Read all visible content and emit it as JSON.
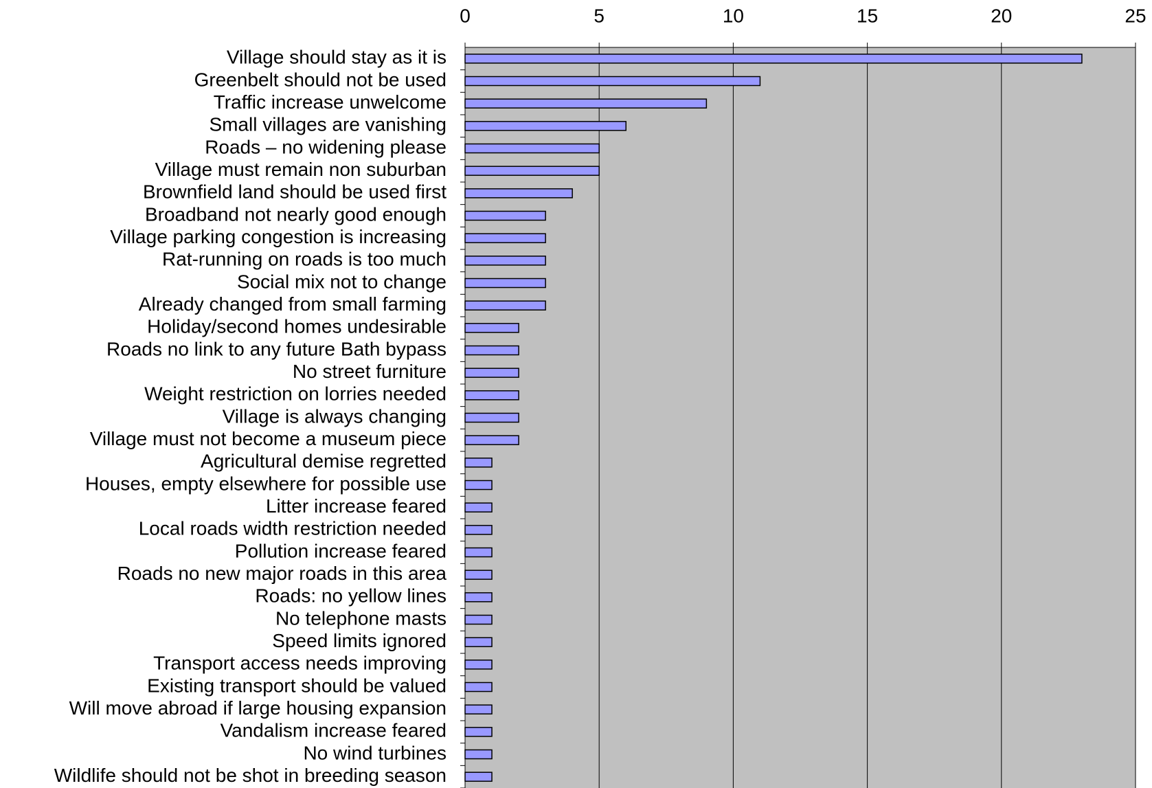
{
  "chart_data": {
    "type": "bar",
    "orientation": "horizontal",
    "categories": [
      "Village should stay as it is",
      "Greenbelt should not be used",
      "Traffic increase unwelcome",
      "Small villages are vanishing",
      "Roads – no widening please",
      "Village must remain non suburban",
      "Brownfield land should be used first",
      "Broadband not nearly good enough",
      "Village parking congestion is increasing",
      "Rat-running on roads is too much",
      "Social mix not to change",
      "Already changed from small farming",
      "Holiday/second homes undesirable",
      "Roads no link to any future Bath bypass",
      "No street furniture",
      "Weight restriction on lorries needed",
      "Village is always changing",
      "Village must not become a museum piece",
      "Agricultural demise regretted",
      "Houses, empty elsewhere for possible use",
      "Litter increase feared",
      "Local roads width restriction needed",
      "Pollution increase feared",
      "Roads no new major roads in this area",
      "Roads: no yellow lines",
      "No telephone masts",
      "Speed limits ignored",
      "Transport access needs improving",
      "Existing transport should be valued",
      "Will move abroad if large housing expansion",
      "Vandalism increase feared",
      "No wind turbines",
      "Wildlife should not be shot in breeding season"
    ],
    "values": [
      23,
      11,
      9,
      6,
      5,
      5,
      4,
      3,
      3,
      3,
      3,
      3,
      2,
      2,
      2,
      2,
      2,
      2,
      1,
      1,
      1,
      1,
      1,
      1,
      1,
      1,
      1,
      1,
      1,
      1,
      1,
      1,
      1
    ],
    "color": "#9999ff",
    "xlim": [
      0,
      25
    ],
    "xticks": [
      0,
      5,
      10,
      15,
      20,
      25
    ],
    "grid": true,
    "plot_background": "#c0c0c0"
  }
}
